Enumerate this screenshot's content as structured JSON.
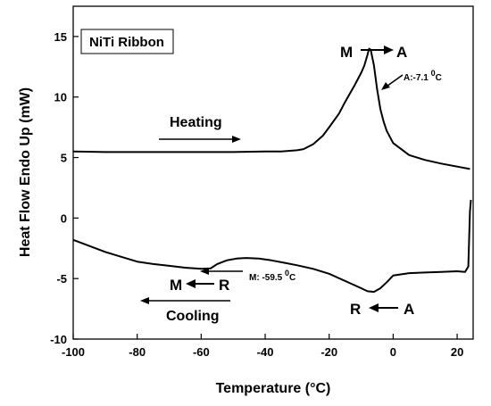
{
  "chart_data": {
    "type": "line",
    "title": "",
    "xlabel": "Temperature (°C)",
    "ylabel": "Heat Flow Endo Up (mW)",
    "xlim": [
      -100,
      25
    ],
    "ylim": [
      -10,
      17.5
    ],
    "xticks": [
      -100,
      -80,
      -60,
      -40,
      -20,
      0,
      20
    ],
    "yticks": [
      -10,
      -5,
      0,
      5,
      10,
      15
    ],
    "grid": false,
    "legend": "none",
    "line_color": "#000000",
    "series": [
      {
        "points": [
          [
            -100,
            5.5
          ],
          [
            -90,
            5.45
          ],
          [
            -80,
            5.45
          ],
          [
            -70,
            5.45
          ],
          [
            -60,
            5.45
          ],
          [
            -50,
            5.45
          ],
          [
            -40,
            5.5
          ],
          [
            -35,
            5.5
          ],
          [
            -30,
            5.6
          ],
          [
            -28,
            5.7
          ],
          [
            -25,
            6.1
          ],
          [
            -22,
            6.8
          ],
          [
            -20,
            7.5
          ],
          [
            -17,
            8.6
          ],
          [
            -15,
            9.6
          ],
          [
            -12,
            11.0
          ],
          [
            -10,
            12.0
          ],
          [
            -9,
            12.6
          ],
          [
            -8,
            13.5
          ],
          [
            -7.5,
            14.0
          ],
          [
            -7,
            13.9
          ],
          [
            -6,
            12.6
          ],
          [
            -5,
            10.6
          ],
          [
            -4,
            9.0
          ],
          [
            -3,
            8.0
          ],
          [
            -2,
            7.2
          ],
          [
            0,
            6.2
          ],
          [
            5,
            5.2
          ],
          [
            10,
            4.8
          ],
          [
            15,
            4.5
          ],
          [
            20,
            4.25
          ],
          [
            24,
            4.05
          ]
        ]
      },
      {
        "points": [
          [
            -100,
            -1.8
          ],
          [
            -95,
            -2.3
          ],
          [
            -90,
            -2.8
          ],
          [
            -85,
            -3.2
          ],
          [
            -80,
            -3.6
          ],
          [
            -75,
            -3.8
          ],
          [
            -70,
            -3.95
          ],
          [
            -65,
            -4.1
          ],
          [
            -60,
            -4.2
          ],
          [
            -57,
            -4.15
          ],
          [
            -55,
            -3.8
          ],
          [
            -52,
            -3.5
          ],
          [
            -49,
            -3.35
          ],
          [
            -46,
            -3.3
          ],
          [
            -42,
            -3.35
          ],
          [
            -38,
            -3.5
          ],
          [
            -34,
            -3.7
          ],
          [
            -30,
            -3.9
          ],
          [
            -25,
            -4.2
          ],
          [
            -20,
            -4.6
          ],
          [
            -15,
            -5.2
          ],
          [
            -10,
            -5.8
          ],
          [
            -8,
            -6.05
          ],
          [
            -6,
            -6.1
          ],
          [
            -4,
            -5.8
          ],
          [
            -2,
            -5.3
          ],
          [
            0,
            -4.75
          ],
          [
            5,
            -4.55
          ],
          [
            10,
            -4.5
          ],
          [
            15,
            -4.45
          ],
          [
            20,
            -4.4
          ],
          [
            22.5,
            -4.45
          ],
          [
            23.5,
            -4.0
          ],
          [
            24,
            0.5
          ],
          [
            24.3,
            1.5
          ]
        ]
      }
    ],
    "annotations": {
      "box_label": "NiTi Ribbon",
      "heating": "Heating",
      "cooling": "Cooling",
      "m": "M",
      "a": "A",
      "r": "R",
      "a_temp_prefix": "A:-7.1 ",
      "m_temp_prefix": "M: -59.5 ",
      "degree_sup": "0",
      "celsius": "C"
    }
  }
}
